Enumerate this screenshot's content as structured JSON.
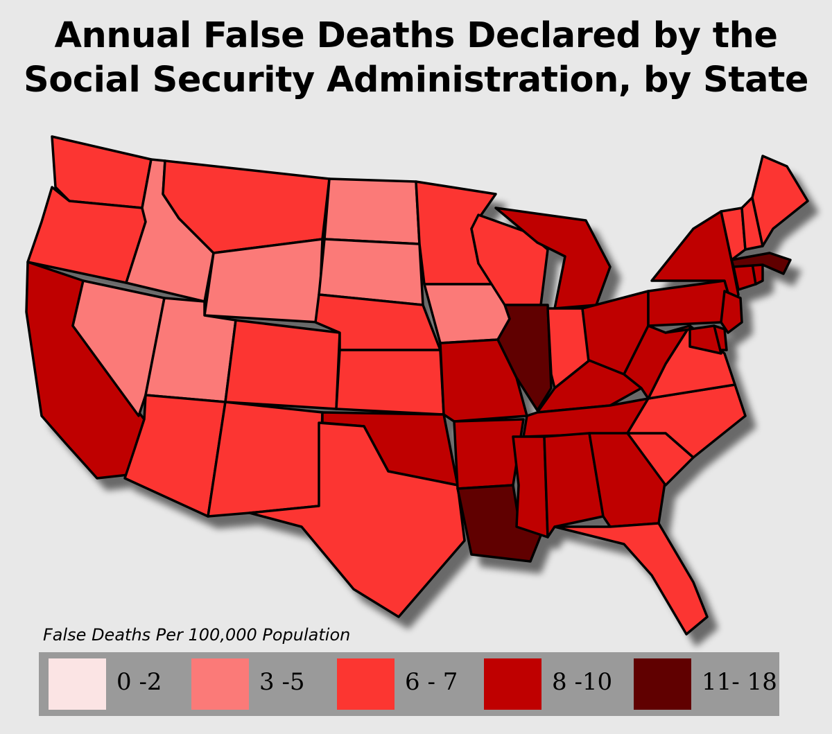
{
  "title": {
    "line1": "Annual False Deaths Declared by the",
    "line2": "Social Security Administration, by State"
  },
  "legend": {
    "title": "False Deaths Per 100,000 Population",
    "items": [
      {
        "label": "0 -2",
        "color": "#fbe4e4"
      },
      {
        "label": "3 -5",
        "color": "#fb7a78"
      },
      {
        "label": "6 - 7",
        "color": "#fc3631"
      },
      {
        "label": "8 -10",
        "color": "#bf0000"
      },
      {
        "label": "11- 18",
        "color": "#600000"
      }
    ]
  },
  "map_data": {
    "WA": "6 - 7",
    "OR": "6 - 7",
    "CA": "8 -10",
    "ID": "3 -5",
    "NV": "3 -5",
    "MT": "6 - 7",
    "WY": "3 -5",
    "UT": "3 -5",
    "AZ": "6 - 7",
    "CO": "6 - 7",
    "NM": "6 - 7",
    "ND": "3 -5",
    "SD": "3 -5",
    "NE": "6 - 7",
    "KS": "6 - 7",
    "OK": "8 -10",
    "TX": "6 - 7",
    "MN": "6 - 7",
    "IA": "3 -5",
    "MO": "8 -10",
    "AR": "8 -10",
    "LA": "11- 18",
    "WI": "6 - 7",
    "IL": "11- 18",
    "MI": "8 -10",
    "IN": "6 - 7",
    "OH": "8 -10",
    "KY": "8 -10",
    "TN": "8 -10",
    "MS": "8 -10",
    "AL": "8 -10",
    "GA": "8 -10",
    "FL": "6 - 7",
    "SC": "6 - 7",
    "NC": "6 - 7",
    "VA": "6 - 7",
    "WV": "8 -10",
    "PA": "8 -10",
    "NY": "8 -10",
    "NJ": "8 -10",
    "DE": "8 -10",
    "MD": "8 -10",
    "CT": "8 -10",
    "RI": "8 -10",
    "MA": "11- 18",
    "VT": "6 - 7",
    "NH": "6 - 7",
    "ME": "6 - 7"
  }
}
